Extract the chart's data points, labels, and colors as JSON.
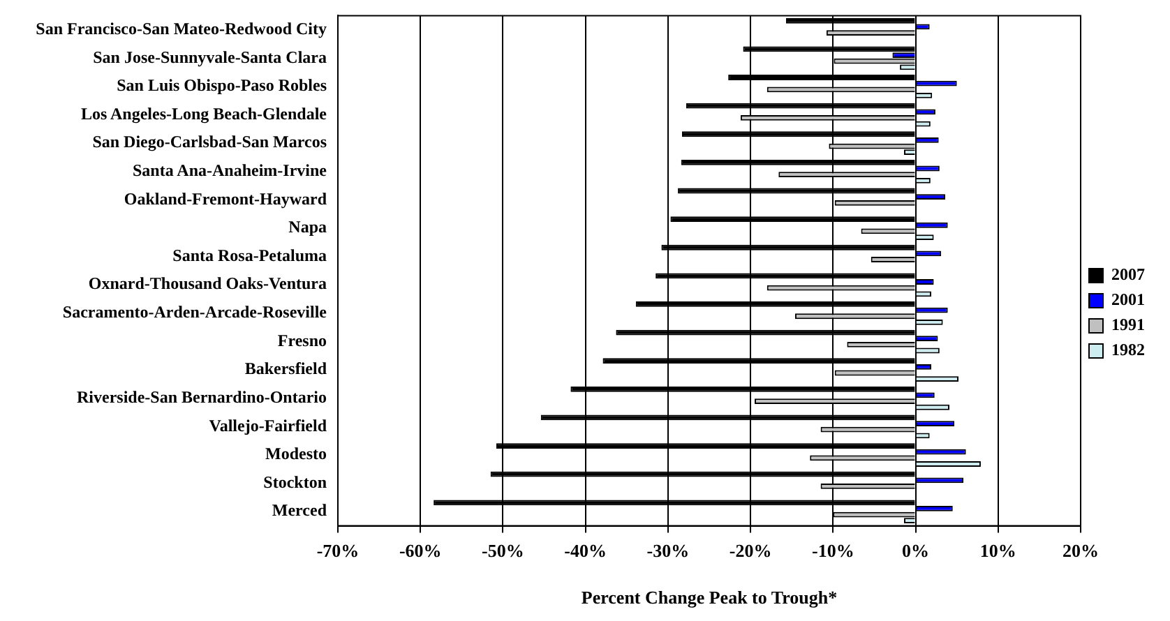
{
  "chart_data": {
    "type": "bar",
    "orientation": "horizontal",
    "xlabel": "Percent Change Peak to Trough*",
    "categories": [
      "San Francisco-San Mateo-Redwood City",
      "San Jose-Sunnyvale-Santa Clara",
      "San Luis Obispo-Paso Robles",
      "Los Angeles-Long Beach-Glendale",
      "San Diego-Carlsbad-San Marcos",
      "Santa Ana-Anaheim-Irvine",
      "Oakland-Fremont-Hayward",
      "Napa",
      "Santa Rosa-Petaluma",
      "Oxnard-Thousand Oaks-Ventura",
      "Sacramento-Arden-Arcade-Roseville",
      "Fresno",
      "Bakersfield",
      "Riverside-San Bernardino-Ontario",
      "Vallejo-Fairfield",
      "Modesto",
      "Stockton",
      "Merced"
    ],
    "series": [
      {
        "name": "2007",
        "color": "#000000",
        "values": [
          -15.7,
          -20.9,
          -22.7,
          -27.8,
          -28.3,
          -28.4,
          -28.8,
          -29.7,
          -30.8,
          -31.5,
          -33.9,
          -36.3,
          -37.9,
          -41.8,
          -45.4,
          -50.8,
          -51.5,
          -58.4
        ]
      },
      {
        "name": "2001",
        "color": "#0000ff",
        "values": [
          1.7,
          -2.8,
          5.0,
          2.4,
          2.8,
          2.9,
          3.6,
          3.9,
          3.1,
          2.2,
          3.9,
          2.7,
          1.9,
          2.3,
          4.7,
          6.1,
          5.8,
          4.5
        ]
      },
      {
        "name": "1991",
        "color": "#c0c0c0",
        "values": [
          -10.8,
          -9.9,
          -18.0,
          -21.2,
          -10.5,
          -16.6,
          -9.8,
          -6.6,
          -5.4,
          -18.0,
          -14.6,
          -8.3,
          -9.8,
          -19.5,
          -11.5,
          -12.8,
          -11.5,
          -10.0
        ]
      },
      {
        "name": "1982",
        "color": "#ccecf0",
        "values": [
          0,
          -1.9,
          2.0,
          1.8,
          -1.4,
          1.8,
          0,
          2.2,
          0,
          1.9,
          3.3,
          2.9,
          5.2,
          4.1,
          1.7,
          7.9,
          0,
          -1.4
        ]
      }
    ],
    "xlim": [
      -70,
      20
    ],
    "xticks": [
      {
        "value": -70,
        "label": "-70%"
      },
      {
        "value": -60,
        "label": "-60%"
      },
      {
        "value": -50,
        "label": "-50%"
      },
      {
        "value": -40,
        "label": "-40%"
      },
      {
        "value": -30,
        "label": "-30%"
      },
      {
        "value": -20,
        "label": "-20%"
      },
      {
        "value": -10,
        "label": "-10%"
      },
      {
        "value": 0,
        "label": "0%"
      },
      {
        "value": 10,
        "label": "10%"
      },
      {
        "value": 20,
        "label": "20%"
      }
    ],
    "grid": "x",
    "legend": "right"
  }
}
